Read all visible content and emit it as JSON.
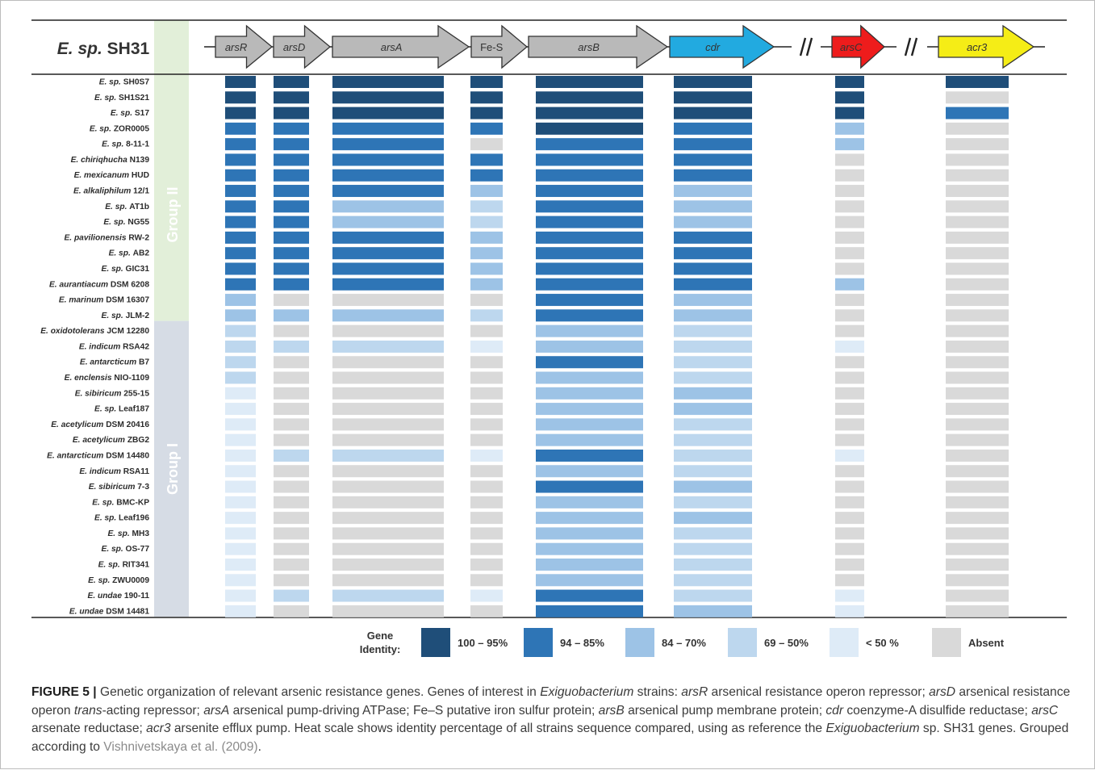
{
  "chart_data": {
    "type": "heatmap",
    "reference": {
      "prefix": "E. sp.",
      "strain": "SH31"
    },
    "genes": [
      "arsR",
      "arsD",
      "arsA",
      "Fe-S",
      "arsB",
      "cdr",
      "arsC",
      "acr3"
    ],
    "gene_colors": {
      "grey": "#b9b9b9",
      "cdr": "#22aae0",
      "arsC": "#ee1c1c",
      "acr3": "#f5ed16"
    },
    "groups": [
      {
        "name": "Group II",
        "row_count": 16,
        "color": "#e2efd9"
      },
      {
        "name": "Group I",
        "row_count": 19,
        "color": "#d6dce5"
      }
    ],
    "categories": [
      {
        "code": "a",
        "label": "100 – 95%",
        "color": "#1f4e79"
      },
      {
        "code": "b",
        "label": "94 – 85%",
        "color": "#2e75b6"
      },
      {
        "code": "c",
        "label": "84 – 70%",
        "color": "#9dc3e6"
      },
      {
        "code": "d",
        "label": "69 – 50%",
        "color": "#bdd7ee"
      },
      {
        "code": "e",
        "label": "< 50 %",
        "color": "#deebf7"
      },
      {
        "code": "x",
        "label": "Absent",
        "color": "#d9d9d9"
      }
    ],
    "legend_title": [
      "Gene",
      "Identity:"
    ],
    "rows": [
      {
        "italic": "E. sp.",
        "plain": "SH0S7",
        "cells": [
          "a",
          "a",
          "a",
          "a",
          "a",
          "a",
          "a",
          "a"
        ]
      },
      {
        "italic": "E. sp.",
        "plain": "SH1S21",
        "cells": [
          "a",
          "a",
          "a",
          "a",
          "a",
          "a",
          "a",
          "x"
        ]
      },
      {
        "italic": "E. sp.",
        "plain": "S17",
        "cells": [
          "a",
          "a",
          "a",
          "a",
          "a",
          "a",
          "a",
          "b"
        ]
      },
      {
        "italic": "E. sp.",
        "plain": "ZOR0005",
        "cells": [
          "b",
          "b",
          "b",
          "b",
          "a",
          "b",
          "c",
          "x"
        ]
      },
      {
        "italic": "E. sp.",
        "plain": "8-11-1",
        "cells": [
          "b",
          "b",
          "b",
          "x",
          "b",
          "b",
          "c",
          "x"
        ]
      },
      {
        "italic": "E. chiriqhucha",
        "plain": "N139",
        "cells": [
          "b",
          "b",
          "b",
          "b",
          "b",
          "b",
          "x",
          "x"
        ]
      },
      {
        "italic": "E. mexicanum",
        "plain": "HUD",
        "cells": [
          "b",
          "b",
          "b",
          "b",
          "b",
          "b",
          "x",
          "x"
        ]
      },
      {
        "italic": "E. alkaliphilum",
        "plain": "12/1",
        "cells": [
          "b",
          "b",
          "b",
          "c",
          "b",
          "c",
          "x",
          "x"
        ]
      },
      {
        "italic": "E. sp.",
        "plain": "AT1b",
        "cells": [
          "b",
          "b",
          "c",
          "d",
          "b",
          "c",
          "x",
          "x"
        ]
      },
      {
        "italic": "E. sp.",
        "plain": "NG55",
        "cells": [
          "b",
          "b",
          "c",
          "d",
          "b",
          "c",
          "x",
          "x"
        ]
      },
      {
        "italic": "E. pavilionensis",
        "plain": "RW-2",
        "cells": [
          "b",
          "b",
          "b",
          "c",
          "b",
          "b",
          "x",
          "x"
        ]
      },
      {
        "italic": "E. sp.",
        "plain": "AB2",
        "cells": [
          "b",
          "b",
          "b",
          "c",
          "b",
          "b",
          "x",
          "x"
        ]
      },
      {
        "italic": "E. sp.",
        "plain": "GIC31",
        "cells": [
          "b",
          "b",
          "b",
          "c",
          "b",
          "b",
          "x",
          "x"
        ]
      },
      {
        "italic": "E. aurantiacum",
        "plain": "DSM 6208",
        "cells": [
          "b",
          "b",
          "b",
          "c",
          "b",
          "b",
          "c",
          "x"
        ]
      },
      {
        "italic": "E. marinum",
        "plain": "DSM 16307",
        "cells": [
          "c",
          "x",
          "x",
          "x",
          "b",
          "c",
          "x",
          "x"
        ]
      },
      {
        "italic": "E. sp.",
        "plain": "JLM-2",
        "cells": [
          "c",
          "c",
          "c",
          "d",
          "b",
          "c",
          "x",
          "x"
        ]
      },
      {
        "italic": "E. oxidotolerans",
        "plain": "JCM 12280",
        "cells": [
          "d",
          "x",
          "x",
          "x",
          "c",
          "d",
          "x",
          "x"
        ]
      },
      {
        "italic": "E. indicum",
        "plain": "RSA42",
        "cells": [
          "d",
          "d",
          "d",
          "e",
          "c",
          "d",
          "e",
          "x"
        ]
      },
      {
        "italic": "E. antarcticum",
        "plain": "B7",
        "cells": [
          "d",
          "x",
          "x",
          "x",
          "b",
          "d",
          "x",
          "x"
        ]
      },
      {
        "italic": "E. enclensis",
        "plain": "NIO-1109",
        "cells": [
          "d",
          "x",
          "x",
          "x",
          "c",
          "d",
          "x",
          "x"
        ]
      },
      {
        "italic": "E. sibiricum",
        "plain": "255-15",
        "cells": [
          "e",
          "x",
          "x",
          "x",
          "c",
          "c",
          "x",
          "x"
        ]
      },
      {
        "italic": "E. sp.",
        "plain": "Leaf187",
        "cells": [
          "e",
          "x",
          "x",
          "x",
          "c",
          "c",
          "x",
          "x"
        ]
      },
      {
        "italic": "E. acetylicum",
        "plain": "DSM 20416",
        "cells": [
          "e",
          "x",
          "x",
          "x",
          "c",
          "d",
          "x",
          "x"
        ]
      },
      {
        "italic": "E. acetylicum",
        "plain": "ZBG2",
        "cells": [
          "e",
          "x",
          "x",
          "x",
          "c",
          "d",
          "x",
          "x"
        ]
      },
      {
        "italic": "E. antarcticum",
        "plain": "DSM 14480",
        "cells": [
          "e",
          "d",
          "d",
          "e",
          "b",
          "d",
          "e",
          "x"
        ]
      },
      {
        "italic": "E. indicum",
        "plain": "RSA11",
        "cells": [
          "e",
          "x",
          "x",
          "x",
          "c",
          "d",
          "x",
          "x"
        ]
      },
      {
        "italic": "E. sibiricum",
        "plain": "7-3",
        "cells": [
          "e",
          "x",
          "x",
          "x",
          "b",
          "c",
          "x",
          "x"
        ]
      },
      {
        "italic": "E. sp.",
        "plain": "BMC-KP",
        "cells": [
          "e",
          "x",
          "x",
          "x",
          "c",
          "d",
          "x",
          "x"
        ]
      },
      {
        "italic": "E. sp.",
        "plain": "Leaf196",
        "cells": [
          "e",
          "x",
          "x",
          "x",
          "c",
          "c",
          "x",
          "x"
        ]
      },
      {
        "italic": "E. sp.",
        "plain": "MH3",
        "cells": [
          "e",
          "x",
          "x",
          "x",
          "c",
          "d",
          "x",
          "x"
        ]
      },
      {
        "italic": "E. sp.",
        "plain": "OS-77",
        "cells": [
          "e",
          "x",
          "x",
          "x",
          "c",
          "d",
          "x",
          "x"
        ]
      },
      {
        "italic": "E. sp.",
        "plain": "RIT341",
        "cells": [
          "e",
          "x",
          "x",
          "x",
          "c",
          "d",
          "x",
          "x"
        ]
      },
      {
        "italic": "E. sp.",
        "plain": "ZWU0009",
        "cells": [
          "e",
          "x",
          "x",
          "x",
          "c",
          "d",
          "x",
          "x"
        ]
      },
      {
        "italic": "E. undae",
        "plain": "190-11",
        "cells": [
          "e",
          "d",
          "d",
          "e",
          "b",
          "d",
          "e",
          "x"
        ]
      },
      {
        "italic": "E. undae",
        "plain": "DSM 14481",
        "cells": [
          "e",
          "x",
          "x",
          "x",
          "b",
          "c",
          "e",
          "x"
        ]
      }
    ]
  },
  "caption": {
    "label": "FIGURE 5 |",
    "parts": [
      {
        "t": " Genetic organization of relevant arsenic resistance genes. Genes of interest in ",
        "i": false
      },
      {
        "t": "Exiguobacterium",
        "i": true
      },
      {
        "t": " strains: ",
        "i": false
      },
      {
        "t": "arsR",
        "i": true
      },
      {
        "t": " arsenical resistance operon repressor; ",
        "i": false
      },
      {
        "t": "arsD",
        "i": true
      },
      {
        "t": " arsenical resistance operon ",
        "i": false
      },
      {
        "t": "trans",
        "i": true
      },
      {
        "t": "-acting repressor; ",
        "i": false
      },
      {
        "t": "arsA",
        "i": true
      },
      {
        "t": " arsenical pump-driving ATPase; Fe–S putative iron sulfur protein; ",
        "i": false
      },
      {
        "t": "arsB",
        "i": true
      },
      {
        "t": " arsenical pump membrane protein; ",
        "i": false
      },
      {
        "t": "cdr",
        "i": true
      },
      {
        "t": " coenzyme-A disulfide reductase; ",
        "i": false
      },
      {
        "t": "arsC",
        "i": true
      },
      {
        "t": " arsenate reductase; ",
        "i": false
      },
      {
        "t": "acr3",
        "i": true
      },
      {
        "t": " arsenite efflux pump. Heat scale shows identity percentage of all strains sequence compared, using as reference the ",
        "i": false
      },
      {
        "t": "Exiguobacterium",
        "i": true
      },
      {
        "t": " sp. SH31 genes. Grouped according to ",
        "i": false
      },
      {
        "t": "Vishnivetskaya et al. (2009)",
        "i": false,
        "ref": true
      },
      {
        "t": ".",
        "i": false
      }
    ]
  }
}
